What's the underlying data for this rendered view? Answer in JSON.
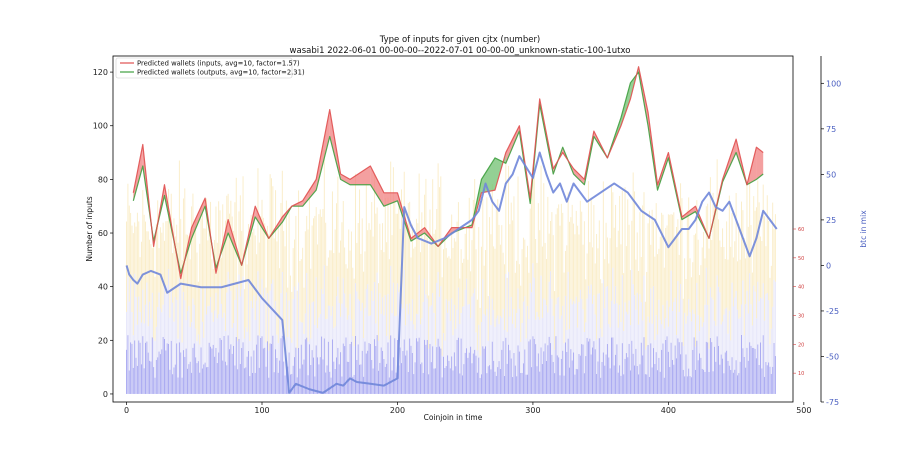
{
  "chart_data": {
    "type": "bar",
    "title": "Type of inputs for given cjtx (number)",
    "subtitle": "wasabi1 2022-06-01 00-00-00--2022-07-01 00-00-00_unknown-static-100-1utxo",
    "xlabel": "Coinjoin in time",
    "ylabel": "Number of inputs",
    "y2label": "btc in mix",
    "xlim": [
      -10,
      492
    ],
    "ylim": [
      -3,
      126
    ],
    "y2lim": [
      -75,
      115
    ],
    "y3lim": [
      0,
      120
    ],
    "x_ticks": [
      0,
      100,
      200,
      300,
      400,
      500
    ],
    "y_ticks": [
      0,
      20,
      40,
      60,
      80,
      100,
      120
    ],
    "y2_ticks": [
      -75,
      -50,
      -25,
      0,
      25,
      50,
      75,
      100
    ],
    "y3_ticks": [
      10,
      20,
      30,
      40,
      50,
      60
    ],
    "n_coinjoins": 480,
    "grid": false,
    "legend_position": "top-left",
    "series": [
      {
        "name": "Predicted wallets (inputs, avg=10, factor=1.57)",
        "color": "#e05050",
        "x": [
          5,
          12,
          20,
          28,
          40,
          48,
          58,
          66,
          75,
          85,
          95,
          105,
          115,
          122,
          130,
          140,
          150,
          158,
          165,
          180,
          190,
          200,
          210,
          220,
          230,
          240,
          255,
          262,
          272,
          280,
          290,
          298,
          305,
          315,
          322,
          330,
          338,
          345,
          355,
          365,
          372,
          378,
          385,
          392,
          400,
          410,
          420,
          430,
          440,
          450,
          458,
          465,
          470
        ],
        "values": [
          75,
          93,
          55,
          78,
          43,
          62,
          73,
          45,
          65,
          48,
          70,
          58,
          66,
          70,
          72,
          80,
          106,
          82,
          80,
          85,
          75,
          75,
          58,
          62,
          55,
          62,
          62,
          75,
          76,
          90,
          100,
          73,
          110,
          84,
          90,
          84,
          80,
          98,
          88,
          100,
          110,
          122,
          105,
          78,
          90,
          66,
          70,
          58,
          80,
          95,
          78,
          92,
          90
        ]
      },
      {
        "name": "Predicted wallets (outputs, avg=10, factor=2.31)",
        "color": "#40a040",
        "x": [
          5,
          12,
          20,
          28,
          40,
          48,
          58,
          66,
          75,
          85,
          95,
          105,
          115,
          122,
          130,
          140,
          150,
          158,
          165,
          180,
          190,
          200,
          210,
          220,
          230,
          240,
          255,
          262,
          272,
          280,
          290,
          298,
          305,
          315,
          322,
          330,
          338,
          345,
          355,
          365,
          372,
          378,
          385,
          392,
          400,
          410,
          420,
          430,
          440,
          450,
          458,
          465,
          470
        ],
        "values": [
          72,
          85,
          57,
          74,
          45,
          58,
          70,
          47,
          60,
          48,
          66,
          58,
          64,
          70,
          70,
          76,
          96,
          80,
          78,
          78,
          70,
          72,
          57,
          60,
          55,
          60,
          63,
          80,
          88,
          86,
          98,
          71,
          108,
          82,
          92,
          82,
          78,
          96,
          88,
          103,
          116,
          120,
          100,
          76,
          88,
          65,
          68,
          58,
          79,
          90,
          78,
          80,
          82
        ]
      },
      {
        "name": "btc in mix",
        "color": "#6f86d9",
        "axis": "right",
        "x": [
          0,
          2,
          5,
          8,
          12,
          18,
          25,
          30,
          40,
          55,
          70,
          90,
          100,
          115,
          120,
          125,
          135,
          145,
          155,
          160,
          165,
          170,
          180,
          190,
          200,
          205,
          210,
          215,
          225,
          235,
          245,
          255,
          260,
          265,
          270,
          275,
          280,
          285,
          290,
          300,
          305,
          310,
          315,
          320,
          325,
          330,
          340,
          350,
          360,
          370,
          380,
          390,
          400,
          405,
          410,
          415,
          420,
          425,
          430,
          435,
          440,
          445,
          450,
          455,
          460,
          465,
          470,
          475,
          480
        ],
        "values": [
          0,
          -5,
          -8,
          -10,
          -5,
          -3,
          -5,
          -15,
          -10,
          -12,
          -12,
          -8,
          -18,
          -30,
          -70,
          -65,
          -68,
          -70,
          -65,
          -66,
          -62,
          -64,
          -65,
          -66,
          -62,
          32,
          22,
          15,
          12,
          15,
          20,
          25,
          30,
          45,
          35,
          30,
          45,
          50,
          60,
          48,
          62,
          50,
          40,
          45,
          35,
          45,
          35,
          40,
          45,
          40,
          30,
          25,
          10,
          15,
          20,
          20,
          25,
          35,
          40,
          32,
          30,
          35,
          25,
          15,
          5,
          15,
          30,
          25,
          20
        ]
      }
    ],
    "bar_layers": [
      {
        "name": "",
        "color": "#9999ee",
        "mean": 14,
        "amplitude": 8
      },
      {
        "name": "",
        "color": "#dcdcf7",
        "mean": 32,
        "amplitude": 10
      },
      {
        "name": "",
        "color": "#f8e6b0",
        "mean": 62,
        "amplitude": 14
      }
    ]
  }
}
